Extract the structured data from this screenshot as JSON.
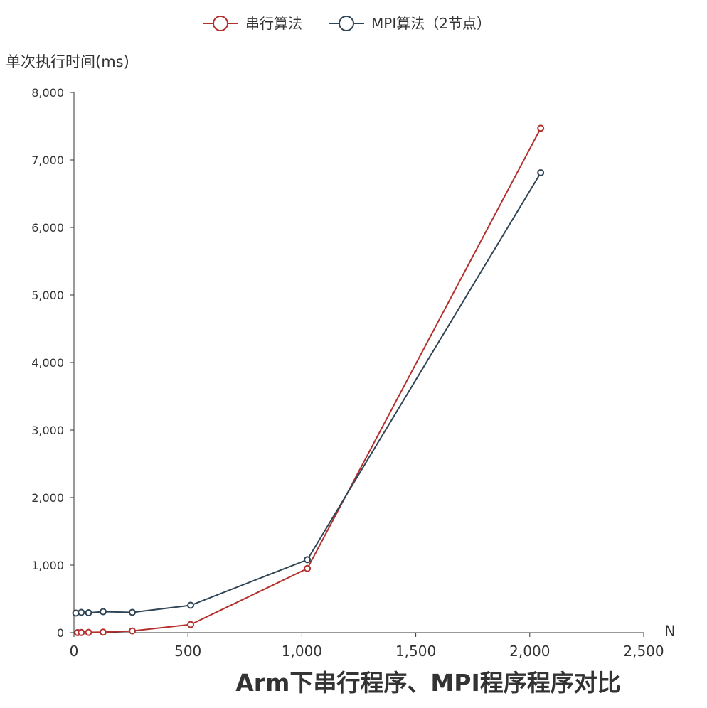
{
  "chart_data": {
    "type": "line",
    "title": "Arm下串行程序、MPI程序程序对比",
    "xlabel": "N",
    "ylabel": "单次执行时间(ms)",
    "xlim": [
      0,
      2500
    ],
    "ylim": [
      0,
      8000
    ],
    "x_ticks": [
      "0",
      "500",
      "1,000",
      "1,500",
      "2,000",
      "2,500"
    ],
    "y_ticks": [
      "0",
      "1,000",
      "2,000",
      "3,000",
      "4,000",
      "5,000",
      "6,000",
      "7,000",
      "8,000"
    ],
    "grid": false,
    "legend_position": "top-center",
    "series": [
      {
        "name": "串行算法",
        "color": "#b4302d",
        "points": [
          [
            16,
            1
          ],
          [
            32,
            2
          ],
          [
            64,
            4
          ],
          [
            128,
            8
          ],
          [
            256,
            25
          ],
          [
            512,
            120
          ],
          [
            1024,
            950
          ],
          [
            2048,
            7470
          ]
        ]
      },
      {
        "name": "MPI算法（2节点）",
        "color": "#2f4555",
        "points": [
          [
            8,
            290
          ],
          [
            32,
            300
          ],
          [
            64,
            295
          ],
          [
            128,
            310
          ],
          [
            256,
            300
          ],
          [
            512,
            405
          ],
          [
            1024,
            1080
          ],
          [
            2048,
            6810
          ]
        ]
      }
    ]
  }
}
